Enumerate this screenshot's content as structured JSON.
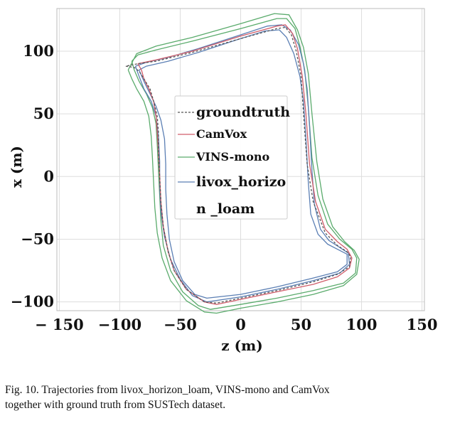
{
  "chart_data": {
    "type": "line",
    "title": "",
    "xlabel": "z (m)",
    "ylabel": "x (m)",
    "xlim": [
      -152,
      152
    ],
    "ylim": [
      -107,
      134
    ],
    "x_ticks": [
      -150,
      -100,
      -50,
      0,
      50,
      100,
      150
    ],
    "x_tick_labels": [
      "− 150",
      "−100",
      "−50",
      "0",
      "50",
      "100",
      "150"
    ],
    "y_ticks": [
      -100,
      -50,
      0,
      50,
      100
    ],
    "y_tick_labels": [
      "−100",
      "−50",
      "0",
      "50",
      "100"
    ],
    "grid": true,
    "legend_position": "center",
    "legend_entries": [
      "groundtruth",
      "CamVox",
      "VINS-mono",
      "livox_horizo",
      "n _loam"
    ],
    "series": [
      {
        "name": "groundtruth",
        "color": "#555555",
        "dash": "dashed",
        "points": [
          [
            -95,
            88
          ],
          [
            -88,
            87
          ],
          [
            -84,
            84
          ],
          [
            -80,
            78
          ],
          [
            -75,
            70
          ],
          [
            -72,
            60
          ],
          [
            -69,
            48
          ],
          [
            -68,
            35
          ],
          [
            -68,
            20
          ],
          [
            -67,
            0
          ],
          [
            -66,
            -20
          ],
          [
            -64,
            -40
          ],
          [
            -60,
            -60
          ],
          [
            -55,
            -75
          ],
          [
            -45,
            -90
          ],
          [
            -30,
            -100
          ],
          [
            -20,
            -101
          ],
          [
            0,
            -97
          ],
          [
            30,
            -91
          ],
          [
            60,
            -84
          ],
          [
            80,
            -78
          ],
          [
            90,
            -72
          ],
          [
            91,
            -64
          ],
          [
            88,
            -60
          ],
          [
            80,
            -55
          ],
          [
            70,
            -45
          ],
          [
            60,
            -20
          ],
          [
            55,
            10
          ],
          [
            52,
            50
          ],
          [
            50,
            80
          ],
          [
            46,
            100
          ],
          [
            42,
            113
          ],
          [
            37,
            119
          ],
          [
            30,
            118
          ],
          [
            0,
            110
          ],
          [
            -40,
            99
          ],
          [
            -70,
            92
          ],
          [
            -85,
            90
          ],
          [
            -95,
            88
          ]
        ]
      },
      {
        "name": "CamVox",
        "color": "#d05d6a",
        "dash": "solid",
        "points": [
          [
            -85,
            90
          ],
          [
            -82,
            85
          ],
          [
            -80,
            78
          ],
          [
            -76,
            70
          ],
          [
            -72,
            60
          ],
          [
            -70,
            48
          ],
          [
            -69,
            35
          ],
          [
            -68,
            20
          ],
          [
            -67,
            0
          ],
          [
            -66,
            -20
          ],
          [
            -64,
            -40
          ],
          [
            -60,
            -60
          ],
          [
            -55,
            -75
          ],
          [
            -45,
            -90
          ],
          [
            -30,
            -100
          ],
          [
            -20,
            -102
          ],
          [
            0,
            -98
          ],
          [
            30,
            -92
          ],
          [
            60,
            -86
          ],
          [
            80,
            -80
          ],
          [
            90,
            -73
          ],
          [
            92,
            -65
          ],
          [
            88,
            -58
          ],
          [
            80,
            -52
          ],
          [
            70,
            -42
          ],
          [
            62,
            -20
          ],
          [
            57,
            10
          ],
          [
            54,
            50
          ],
          [
            51,
            80
          ],
          [
            47,
            102
          ],
          [
            43,
            114
          ],
          [
            37,
            121
          ],
          [
            30,
            120
          ],
          [
            0,
            112
          ],
          [
            -40,
            100
          ],
          [
            -70,
            93
          ],
          [
            -85,
            90
          ]
        ]
      },
      {
        "name": "VINS-mono",
        "color": "#5aab6c",
        "dash": "solid",
        "points": [
          [
            -90,
            92
          ],
          [
            -88,
            85
          ],
          [
            -84,
            76
          ],
          [
            -78,
            66
          ],
          [
            -73,
            55
          ],
          [
            -70,
            42
          ],
          [
            -69,
            25
          ],
          [
            -68,
            5
          ],
          [
            -67,
            -15
          ],
          [
            -66,
            -35
          ],
          [
            -64,
            -55
          ],
          [
            -58,
            -75
          ],
          [
            -48,
            -92
          ],
          [
            -35,
            -103
          ],
          [
            -25,
            -106
          ],
          [
            0,
            -102
          ],
          [
            30,
            -97
          ],
          [
            60,
            -91
          ],
          [
            85,
            -85
          ],
          [
            95,
            -77
          ],
          [
            96,
            -65
          ],
          [
            92,
            -58
          ],
          [
            82,
            -50
          ],
          [
            72,
            -38
          ],
          [
            64,
            -15
          ],
          [
            59,
            15
          ],
          [
            56,
            55
          ],
          [
            53,
            85
          ],
          [
            49,
            104
          ],
          [
            45,
            118
          ],
          [
            38,
            126
          ],
          [
            30,
            126
          ],
          [
            0,
            118
          ],
          [
            -40,
            108
          ],
          [
            -70,
            101
          ],
          [
            -85,
            97
          ],
          [
            -90,
            92
          ]
        ]
      },
      {
        "name": "VINS-mono",
        "color": "#5aab6c",
        "dash": "solid",
        "points": [
          [
            -93,
            85
          ],
          [
            -90,
            78
          ],
          [
            -86,
            70
          ],
          [
            -80,
            60
          ],
          [
            -76,
            48
          ],
          [
            -74,
            32
          ],
          [
            -73,
            15
          ],
          [
            -72,
            -5
          ],
          [
            -71,
            -25
          ],
          [
            -69,
            -45
          ],
          [
            -65,
            -65
          ],
          [
            -58,
            -83
          ],
          [
            -45,
            -99
          ],
          [
            -30,
            -108
          ],
          [
            -20,
            -109
          ],
          [
            0,
            -105
          ],
          [
            30,
            -100
          ],
          [
            60,
            -94
          ],
          [
            85,
            -87
          ],
          [
            96,
            -78
          ],
          [
            98,
            -66
          ],
          [
            94,
            -59
          ],
          [
            86,
            -52
          ],
          [
            76,
            -40
          ],
          [
            68,
            -18
          ],
          [
            63,
            12
          ],
          [
            59,
            50
          ],
          [
            56,
            82
          ],
          [
            52,
            103
          ],
          [
            47,
            117
          ],
          [
            40,
            129
          ],
          [
            28,
            130
          ],
          [
            0,
            122
          ],
          [
            -40,
            111
          ],
          [
            -70,
            104
          ],
          [
            -86,
            98
          ],
          [
            -93,
            85
          ]
        ]
      },
      {
        "name": "livox_horizo",
        "color": "#5b7fb4",
        "dash": "solid",
        "points": [
          [
            -84,
            85
          ],
          [
            -80,
            76
          ],
          [
            -75,
            66
          ],
          [
            -70,
            56
          ],
          [
            -66,
            45
          ],
          [
            -63,
            30
          ],
          [
            -62,
            10
          ],
          [
            -62,
            -10
          ],
          [
            -61,
            -30
          ],
          [
            -59,
            -50
          ],
          [
            -55,
            -68
          ],
          [
            -48,
            -83
          ],
          [
            -38,
            -94
          ],
          [
            -28,
            -97
          ],
          [
            0,
            -94
          ],
          [
            30,
            -88
          ],
          [
            60,
            -81
          ],
          [
            80,
            -76
          ],
          [
            88,
            -70
          ],
          [
            88,
            -62
          ],
          [
            80,
            -58
          ],
          [
            72,
            -54
          ],
          [
            64,
            -46
          ],
          [
            58,
            -30
          ],
          [
            56,
            -5
          ],
          [
            54,
            30
          ],
          [
            52,
            60
          ],
          [
            49,
            80
          ],
          [
            44,
            98
          ],
          [
            38,
            111
          ],
          [
            32,
            117
          ],
          [
            20,
            116
          ],
          [
            0,
            110
          ],
          [
            -35,
            99
          ],
          [
            -60,
            92
          ],
          [
            -78,
            88
          ],
          [
            -84,
            85
          ]
        ]
      },
      {
        "name": "livox_horizo",
        "color": "#5b7fb4",
        "dash": "solid",
        "points": [
          [
            -87,
            88
          ],
          [
            -84,
            80
          ],
          [
            -80,
            70
          ],
          [
            -74,
            60
          ],
          [
            -70,
            48
          ],
          [
            -68,
            32
          ],
          [
            -67,
            12
          ],
          [
            -67,
            -8
          ],
          [
            -66,
            -28
          ],
          [
            -63,
            -48
          ],
          [
            -58,
            -66
          ],
          [
            -50,
            -82
          ],
          [
            -40,
            -95
          ],
          [
            -28,
            -100
          ],
          [
            0,
            -96
          ],
          [
            30,
            -90
          ],
          [
            60,
            -83
          ],
          [
            82,
            -77
          ],
          [
            90,
            -70
          ],
          [
            89,
            -61
          ],
          [
            81,
            -56
          ],
          [
            73,
            -51
          ],
          [
            66,
            -42
          ],
          [
            61,
            -22
          ],
          [
            59,
            5
          ],
          [
            57,
            40
          ],
          [
            55,
            70
          ],
          [
            52,
            90
          ],
          [
            48,
            105
          ],
          [
            41,
            117
          ],
          [
            34,
            121
          ],
          [
            22,
            120
          ],
          [
            0,
            113
          ],
          [
            -35,
            102
          ],
          [
            -60,
            95
          ],
          [
            -78,
            91
          ],
          [
            -87,
            88
          ]
        ]
      }
    ]
  },
  "caption": {
    "line1": "Fig. 10.   Trajectories from livox_horizon_loam, VINS-mono and CamVox",
    "line2": "together with ground truth from SUSTech dataset."
  }
}
